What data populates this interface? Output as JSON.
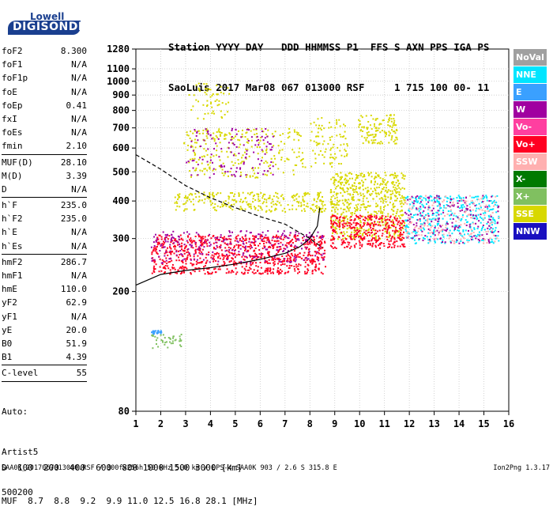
{
  "logo": {
    "top": "Lowell",
    "bottom": "DIGISONDE"
  },
  "header": {
    "line1": "Station YYYY DAY   DDD HHMMSS P1  FFS S AXN PPS IGA PS",
    "line2": "SaoLuis 2017 Mar08 067 013000 RSF     1 715 100 00- 11"
  },
  "params": {
    "group1": [
      {
        "name": "foF2",
        "value": "8.300"
      },
      {
        "name": "foF1",
        "value": "N/A"
      },
      {
        "name": "foF1p",
        "value": "N/A"
      },
      {
        "name": "foE",
        "value": "N/A"
      },
      {
        "name": "foEp",
        "value": "0.41"
      },
      {
        "name": "fxI",
        "value": "N/A"
      },
      {
        "name": "foEs",
        "value": "N/A"
      },
      {
        "name": "fmin",
        "value": "2.10"
      }
    ],
    "group2": [
      {
        "name": "MUF(D)",
        "value": "28.10"
      },
      {
        "name": "M(D)",
        "value": "3.39"
      },
      {
        "name": "D",
        "value": "N/A"
      }
    ],
    "group3": [
      {
        "name": "h`F",
        "value": "235.0"
      },
      {
        "name": "h`F2",
        "value": "235.0"
      },
      {
        "name": "h`E",
        "value": "N/A"
      },
      {
        "name": "h`Es",
        "value": "N/A"
      }
    ],
    "group4": [
      {
        "name": "hmF2",
        "value": "286.7"
      },
      {
        "name": "hmF1",
        "value": "N/A"
      },
      {
        "name": "hmE",
        "value": "110.0"
      },
      {
        "name": "yF2",
        "value": "62.9"
      },
      {
        "name": "yF1",
        "value": "N/A"
      },
      {
        "name": "yE",
        "value": "20.0"
      },
      {
        "name": "B0",
        "value": "51.9"
      },
      {
        "name": "B1",
        "value": "4.39"
      }
    ],
    "group5": [
      {
        "name": "C-level",
        "value": "55"
      }
    ]
  },
  "auto": {
    "line1": "Auto:",
    "line2": "Artist5",
    "line3": "500200"
  },
  "freq_table": {
    "d_label": "D",
    "d_values": "100  200  400  600  800 1000 1500 3000 [km]",
    "muf_label": "MUF",
    "muf_values": "8.7  8.8  9.2  9.9 11.0 12.5 16.8 28.1 [MHz]"
  },
  "footer": {
    "left": "SAA0K_2017067013000.RSF / 300fx256h 50 kHz 5.0 km / DPS-4 SAA0K 903 / 2.6 S 315.8 E",
    "right": "Ion2Png 1.3.17"
  },
  "legend": [
    {
      "label": "NoVal",
      "color": "#a0a0a0"
    },
    {
      "label": "NNE",
      "color": "#00e5ff"
    },
    {
      "label": "E",
      "color": "#3aa0ff"
    },
    {
      "label": "W",
      "color": "#a000a0"
    },
    {
      "label": "Vo-",
      "color": "#ff3fa0"
    },
    {
      "label": "Vo+",
      "color": "#ff0022"
    },
    {
      "label": "SSW",
      "color": "#ffb0b0"
    },
    {
      "label": "X-",
      "color": "#007a00"
    },
    {
      "label": "X+",
      "color": "#80c060"
    },
    {
      "label": "SSE",
      "color": "#d8d800"
    },
    {
      "label": "NNW",
      "color": "#1a10c0"
    }
  ],
  "chart_data": {
    "type": "scatter",
    "x_ticks": [
      1,
      2,
      3,
      4,
      5,
      6,
      7,
      8,
      9,
      10,
      11,
      12,
      13,
      14,
      15,
      16
    ],
    "y_ticks": [
      80,
      200,
      300,
      400,
      500,
      600,
      700,
      800,
      900,
      1000,
      1100,
      1280
    ],
    "xlim": [
      1,
      16
    ],
    "ylim": [
      80,
      1280
    ],
    "y_scale": "log",
    "grid": true,
    "regions": [
      {
        "name": "Vo+",
        "x": [
          1.6,
          8.6
        ],
        "y": [
          230,
          310
        ],
        "density": 900
      },
      {
        "name": "W",
        "x": [
          1.6,
          8.6
        ],
        "y": [
          250,
          320
        ],
        "density": 250
      },
      {
        "name": "SSE",
        "x": [
          2.5,
          8.6
        ],
        "y": [
          370,
          430
        ],
        "density": 280
      },
      {
        "name": "SSE",
        "x": [
          2.9,
          7.8
        ],
        "y": [
          480,
          700
        ],
        "density": 260
      },
      {
        "name": "W",
        "x": [
          3.0,
          6.5
        ],
        "y": [
          480,
          700
        ],
        "density": 120
      },
      {
        "name": "SSE",
        "x": [
          8.8,
          11.8
        ],
        "y": [
          300,
          500
        ],
        "density": 600
      },
      {
        "name": "Vo+",
        "x": [
          8.8,
          11.8
        ],
        "y": [
          280,
          360
        ],
        "density": 350
      },
      {
        "name": "NNE",
        "x": [
          11.8,
          15.6
        ],
        "y": [
          290,
          420
        ],
        "density": 350
      },
      {
        "name": "W",
        "x": [
          11.8,
          15.6
        ],
        "y": [
          290,
          420
        ],
        "density": 180
      },
      {
        "name": "SSW",
        "x": [
          11.8,
          15.6
        ],
        "y": [
          290,
          420
        ],
        "density": 150
      },
      {
        "name": "SSE",
        "x": [
          9.9,
          11.5
        ],
        "y": [
          620,
          780
        ],
        "density": 120
      },
      {
        "name": "SSE",
        "x": [
          8.0,
          9.5
        ],
        "y": [
          520,
          760
        ],
        "density": 90
      },
      {
        "name": "SSE",
        "x": [
          3.1,
          4.8
        ],
        "y": [
          750,
          1000
        ],
        "density": 60
      },
      {
        "name": "X+",
        "x": [
          1.6,
          2.8
        ],
        "y": [
          130,
          145
        ],
        "density": 40
      },
      {
        "name": "E",
        "x": [
          1.6,
          2.0
        ],
        "y": [
          145,
          150
        ],
        "density": 25
      }
    ],
    "profile_solid": {
      "x": [
        1.0,
        2.0,
        3.0,
        4.0,
        5.0,
        6.0,
        7.0,
        7.6,
        8.0,
        8.3,
        8.4
      ],
      "y": [
        210,
        228,
        235,
        240,
        247,
        256,
        268,
        282,
        300,
        330,
        380
      ]
    },
    "profile_dashed": {
      "x": [
        1.0,
        2.0,
        3.0,
        4.0,
        5.0,
        6.0,
        7.0,
        8.0,
        8.5
      ],
      "y": [
        570,
        510,
        450,
        410,
        380,
        355,
        335,
        300,
        280
      ]
    }
  }
}
